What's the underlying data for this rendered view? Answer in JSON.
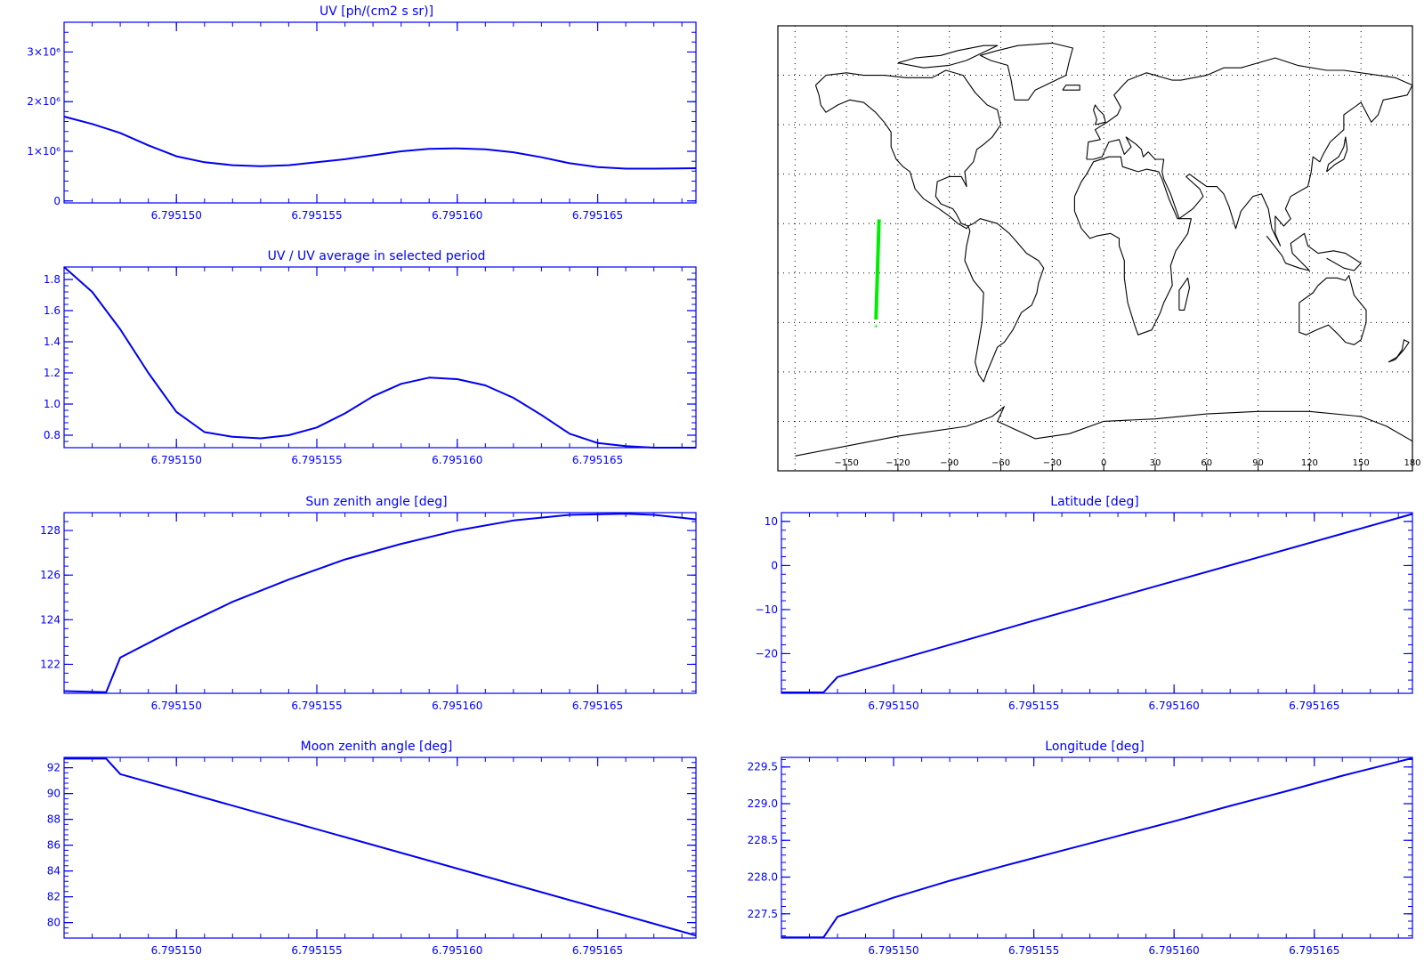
{
  "colors": {
    "axes": "#0000ff",
    "line": "#0000ee",
    "track": "#00ee00",
    "coast": "#000000",
    "grid": "#000000"
  },
  "x_tick_labels": [
    "6.795150",
    "6.795155",
    "6.795160",
    "6.795165"
  ],
  "chart_data": [
    {
      "id": "uv",
      "type": "line",
      "title": "UV [ph/(cm2 s sr)]",
      "xlim": [
        6.795146,
        6.7951685
      ],
      "ylim": [
        -40000,
        3600000
      ],
      "ytick_values": [
        0,
        1000000,
        2000000,
        3000000
      ],
      "ytick_labels": [
        "0",
        "1×10⁶",
        "2×10⁶",
        "3×10⁶"
      ],
      "grid": false,
      "series": [
        {
          "x": [
            6.795146,
            6.795147,
            6.795148,
            6.795149,
            6.79515,
            6.795151,
            6.795152,
            6.795153,
            6.795154,
            6.795155,
            6.795156,
            6.795157,
            6.795158,
            6.795159,
            6.79516,
            6.795161,
            6.795162,
            6.795163,
            6.795164,
            6.795165,
            6.795166,
            6.795167,
            6.7951685
          ],
          "y": [
            1700000,
            1550000,
            1370000,
            1120000,
            900000,
            780000,
            720000,
            700000,
            720000,
            780000,
            840000,
            920000,
            1000000,
            1050000,
            1060000,
            1040000,
            980000,
            880000,
            760000,
            680000,
            650000,
            650000,
            660000
          ]
        }
      ]
    },
    {
      "id": "uv-ratio",
      "type": "line",
      "title": "UV / UV average in selected period",
      "xlim": [
        6.795146,
        6.7951685
      ],
      "ylim": [
        0.72,
        1.88
      ],
      "ytick_values": [
        0.8,
        1.0,
        1.2,
        1.4,
        1.6,
        1.8
      ],
      "ytick_labels": [
        "0.8",
        "1.0",
        "1.2",
        "1.4",
        "1.6",
        "1.8"
      ],
      "grid": false,
      "series": [
        {
          "x": [
            6.795146,
            6.795147,
            6.795148,
            6.795149,
            6.79515,
            6.795151,
            6.795152,
            6.795153,
            6.795154,
            6.795155,
            6.795156,
            6.795157,
            6.795158,
            6.795159,
            6.79516,
            6.795161,
            6.795162,
            6.795163,
            6.795164,
            6.795165,
            6.795166,
            6.795167,
            6.7951685
          ],
          "y": [
            1.88,
            1.72,
            1.48,
            1.2,
            0.95,
            0.82,
            0.79,
            0.78,
            0.8,
            0.85,
            0.94,
            1.05,
            1.13,
            1.17,
            1.16,
            1.12,
            1.04,
            0.93,
            0.81,
            0.75,
            0.73,
            0.72,
            0.72
          ]
        }
      ]
    },
    {
      "id": "sun-zenith",
      "type": "line",
      "title": "Sun zenith angle [deg]",
      "xlim": [
        6.795146,
        6.7951685
      ],
      "ylim": [
        120.7,
        128.8
      ],
      "ytick_values": [
        122,
        124,
        126,
        128
      ],
      "ytick_labels": [
        "122",
        "124",
        "126",
        "128"
      ],
      "grid": false,
      "series": [
        {
          "x": [
            6.795146,
            6.7951475,
            6.795148,
            6.79515,
            6.795152,
            6.795154,
            6.795156,
            6.795158,
            6.79516,
            6.795162,
            6.795164,
            6.795166,
            6.795167,
            6.7951685
          ],
          "y": [
            120.8,
            120.75,
            122.3,
            123.6,
            124.8,
            125.8,
            126.7,
            127.4,
            128.0,
            128.45,
            128.7,
            128.75,
            128.7,
            128.5
          ]
        }
      ]
    },
    {
      "id": "latitude",
      "type": "line",
      "title": "Latitude [deg]",
      "xlim": [
        6.795146,
        6.7951685
      ],
      "ylim": [
        -29,
        12
      ],
      "ytick_values": [
        -20,
        -10,
        0,
        10
      ],
      "ytick_labels": [
        "−20",
        "−10",
        "0",
        "10"
      ],
      "grid": false,
      "series": [
        {
          "x": [
            6.795146,
            6.7951475,
            6.795148,
            6.795155,
            6.7951685
          ],
          "y": [
            -28.8,
            -28.8,
            -25.3,
            -12.5,
            11.7
          ]
        }
      ]
    },
    {
      "id": "moon-zenith",
      "type": "line",
      "title": "Moon zenith angle [deg]",
      "xlim": [
        6.795146,
        6.7951685
      ],
      "ylim": [
        78.8,
        92.8
      ],
      "ytick_values": [
        80,
        82,
        84,
        86,
        88,
        90,
        92
      ],
      "ytick_labels": [
        "80",
        "82",
        "84",
        "86",
        "88",
        "90",
        "92"
      ],
      "grid": false,
      "series": [
        {
          "x": [
            6.795146,
            6.7951475,
            6.795148,
            6.7951685
          ],
          "y": [
            92.7,
            92.7,
            91.5,
            79.0
          ]
        }
      ]
    },
    {
      "id": "longitude",
      "type": "line",
      "title": "Longitude [deg]",
      "xlim": [
        6.795146,
        6.7951685
      ],
      "ylim": [
        227.17,
        229.63
      ],
      "ytick_values": [
        227.5,
        228.0,
        228.5,
        229.0,
        229.5
      ],
      "ytick_labels": [
        "227.5",
        "228.0",
        "228.5",
        "229.0",
        "229.5"
      ],
      "grid": false,
      "series": [
        {
          "x": [
            6.795146,
            6.7951475,
            6.795148,
            6.79515,
            6.795152,
            6.795154,
            6.795156,
            6.795158,
            6.79516,
            6.795162,
            6.795164,
            6.795166,
            6.7951685
          ],
          "y": [
            227.18,
            227.18,
            227.46,
            227.72,
            227.95,
            228.16,
            228.36,
            228.56,
            228.76,
            228.97,
            229.17,
            229.38,
            229.62
          ]
        }
      ]
    }
  ],
  "map": {
    "type": "map",
    "projection": "equirectangular",
    "xlim": [
      -190,
      180
    ],
    "ylim": [
      -90,
      90
    ],
    "grid_lon": [
      -180,
      -150,
      -120,
      -90,
      -60,
      -30,
      0,
      30,
      60,
      90,
      120,
      150,
      180
    ],
    "grid_lat": [
      -70,
      -50,
      -30,
      -10,
      10,
      30,
      50,
      70
    ],
    "grid": "dotted",
    "x_tick_values": [
      -150,
      -120,
      -90,
      -60,
      -30,
      0,
      30,
      60,
      90,
      120,
      150,
      180
    ],
    "x_tick_labels": [
      "−150",
      "−120",
      "−90",
      "−60",
      "−30",
      "0",
      "30",
      "60",
      "90",
      "120",
      "150",
      "180"
    ],
    "track": {
      "lon": [
        -132.8,
        -131.0
      ],
      "lat": [
        -28.8,
        11.7
      ]
    }
  }
}
